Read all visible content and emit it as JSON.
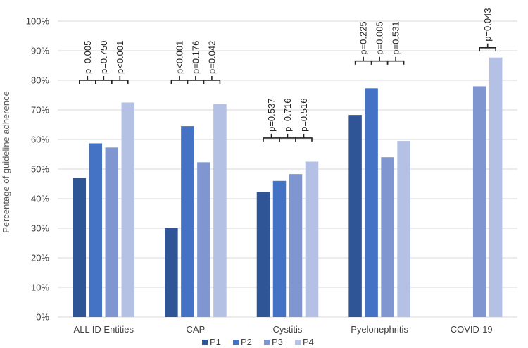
{
  "chart_data": {
    "type": "bar",
    "title": "",
    "xlabel": "",
    "ylabel": "Percentage of guideline adherence",
    "ylim": [
      0,
      100
    ],
    "yticks": [
      "0%",
      "10%",
      "20%",
      "30%",
      "40%",
      "50%",
      "60%",
      "70%",
      "80%",
      "90%",
      "100%"
    ],
    "grid": true,
    "legend_position": "bottom",
    "categories": [
      "ALL ID Entities",
      "CAP",
      "Cystitis",
      "Pyelonephritis",
      "COVID-19"
    ],
    "series": [
      {
        "name": "P1",
        "color": "#2f5597",
        "values": [
          47,
          30,
          42.3,
          68.3,
          null
        ]
      },
      {
        "name": "P2",
        "color": "#4472c4",
        "values": [
          58.7,
          64.5,
          46,
          77.3,
          null
        ]
      },
      {
        "name": "P3",
        "color": "#7f96d0",
        "values": [
          57.3,
          52.3,
          48.3,
          54,
          78
        ]
      },
      {
        "name": "P4",
        "color": "#b4c0e4",
        "values": [
          72.5,
          72,
          52.5,
          59.5,
          87.7
        ]
      }
    ],
    "annotations": [
      {
        "category": 0,
        "between": [
          0,
          1
        ],
        "label": "p=0.005",
        "bracket_y": 80
      },
      {
        "category": 0,
        "between": [
          1,
          2
        ],
        "label": "p=0.750",
        "bracket_y": 80
      },
      {
        "category": 0,
        "between": [
          2,
          3
        ],
        "label": "p<0.001",
        "bracket_y": 80
      },
      {
        "category": 1,
        "between": [
          0,
          1
        ],
        "label": "p<0.001",
        "bracket_y": 80
      },
      {
        "category": 1,
        "between": [
          1,
          2
        ],
        "label": "p=0.176",
        "bracket_y": 80
      },
      {
        "category": 1,
        "between": [
          2,
          3
        ],
        "label": "p=0.042",
        "bracket_y": 80
      },
      {
        "category": 2,
        "between": [
          0,
          1
        ],
        "label": "p=0.537",
        "bracket_y": 60.5
      },
      {
        "category": 2,
        "between": [
          1,
          2
        ],
        "label": "p=0.716",
        "bracket_y": 60.5
      },
      {
        "category": 2,
        "between": [
          2,
          3
        ],
        "label": "p=0.516",
        "bracket_y": 60.5
      },
      {
        "category": 3,
        "between": [
          0,
          1
        ],
        "label": "p=0.225",
        "bracket_y": 86.5
      },
      {
        "category": 3,
        "between": [
          1,
          2
        ],
        "label": "p=0.005",
        "bracket_y": 86.5
      },
      {
        "category": 3,
        "between": [
          2,
          3
        ],
        "label": "p=0.531",
        "bracket_y": 86.5
      },
      {
        "category": 4,
        "between": [
          2,
          3
        ],
        "label": "p=0.043",
        "bracket_y": 91
      }
    ]
  }
}
